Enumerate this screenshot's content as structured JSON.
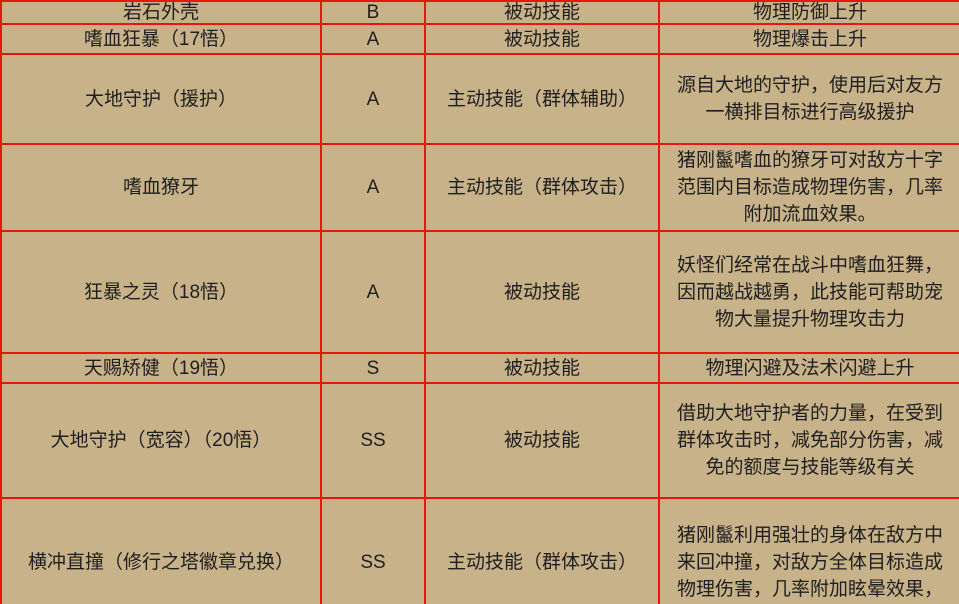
{
  "meta": {
    "background_color": "#c8b28a",
    "border_color": "#e8160e",
    "text_color": "#1f1f1f"
  },
  "table": {
    "rows": [
      {
        "name": "岩石外壳",
        "grade": "B",
        "type": "被动技能",
        "desc": "物理防御上升"
      },
      {
        "name": "嗜血狂暴（17悟）",
        "grade": "A",
        "type": "被动技能",
        "desc": "物理爆击上升"
      },
      {
        "name": "大地守护（援护）",
        "grade": "A",
        "type": "主动技能（群体辅助）",
        "desc": "源自大地的守护，使用后对友方\n一横排目标进行高级援护"
      },
      {
        "name": "嗜血獠牙",
        "grade": "A",
        "type": "主动技能（群体攻击）",
        "desc": "猪刚鬣嗜血的獠牙可对敌方十字\n范围内目标造成物理伤害，几率\n附加流血效果。"
      },
      {
        "name": "狂暴之灵（18悟）",
        "grade": "A",
        "type": "被动技能",
        "desc": "妖怪们经常在战斗中嗜血狂舞，\n因而越战越勇，此技能可帮助宠\n物大量提升物理攻击力"
      },
      {
        "name": "天赐矫健（19悟）",
        "grade": "S",
        "type": "被动技能",
        "desc": "物理闪避及法术闪避上升"
      },
      {
        "name": "大地守护（宽容）（20悟）",
        "grade": "SS",
        "type": "被动技能",
        "desc": "借助大地守护者的力量，在受到\n群体攻击时，减免部分伤害，减\n免的额度与技能等级有关"
      },
      {
        "name": "横冲直撞（修行之塔徽章兑换）",
        "grade": "SS",
        "type": "主动技能（群体攻击）",
        "desc": "猪刚鬣利用强壮的身体在敌方中\n来回冲撞，对敌方全体目标造成\n物理伤害，几率附加眩晕效果，"
      }
    ]
  }
}
